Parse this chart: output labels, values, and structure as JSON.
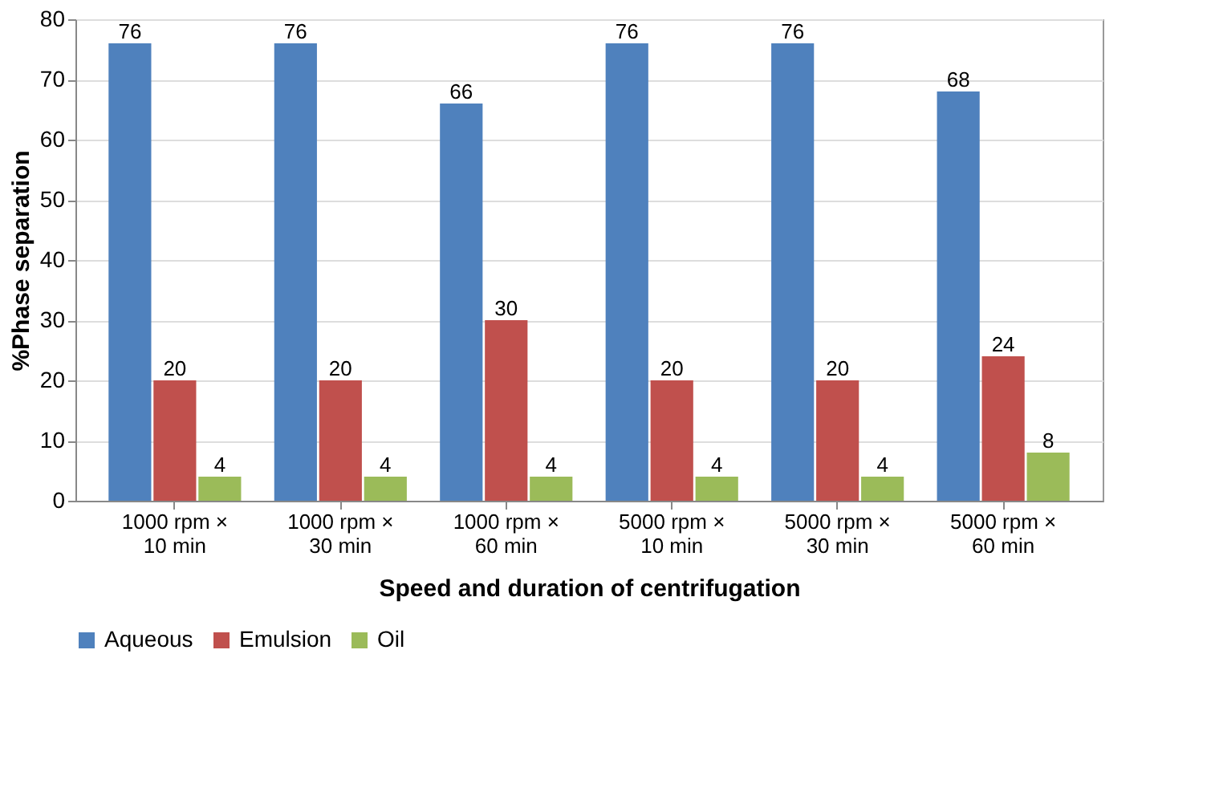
{
  "chart_data": {
    "type": "bar",
    "xlabel": "Speed and duration of centrifugation",
    "ylabel": "%Phase separation",
    "categories": [
      "1000 rpm × 10 min",
      "1000 rpm × 30 min",
      "1000 rpm × 60 min",
      "5000 rpm × 10 min",
      "5000 rpm × 30 min",
      "5000 rpm × 60 min"
    ],
    "series": [
      {
        "name": "Aqueous",
        "color": "#4f81bd",
        "values": [
          76,
          76,
          66,
          76,
          76,
          68
        ]
      },
      {
        "name": "Emulsion",
        "color": "#c0504d",
        "values": [
          20,
          20,
          30,
          20,
          20,
          24
        ]
      },
      {
        "name": "Oil",
        "color": "#9bbb59",
        "values": [
          4,
          4,
          4,
          4,
          4,
          8
        ]
      }
    ],
    "ylim": [
      0,
      80
    ],
    "yticks": [
      0,
      10,
      20,
      30,
      40,
      50,
      60,
      70,
      80
    ],
    "grid": "y",
    "legend": "bottom",
    "data_labels": true
  }
}
